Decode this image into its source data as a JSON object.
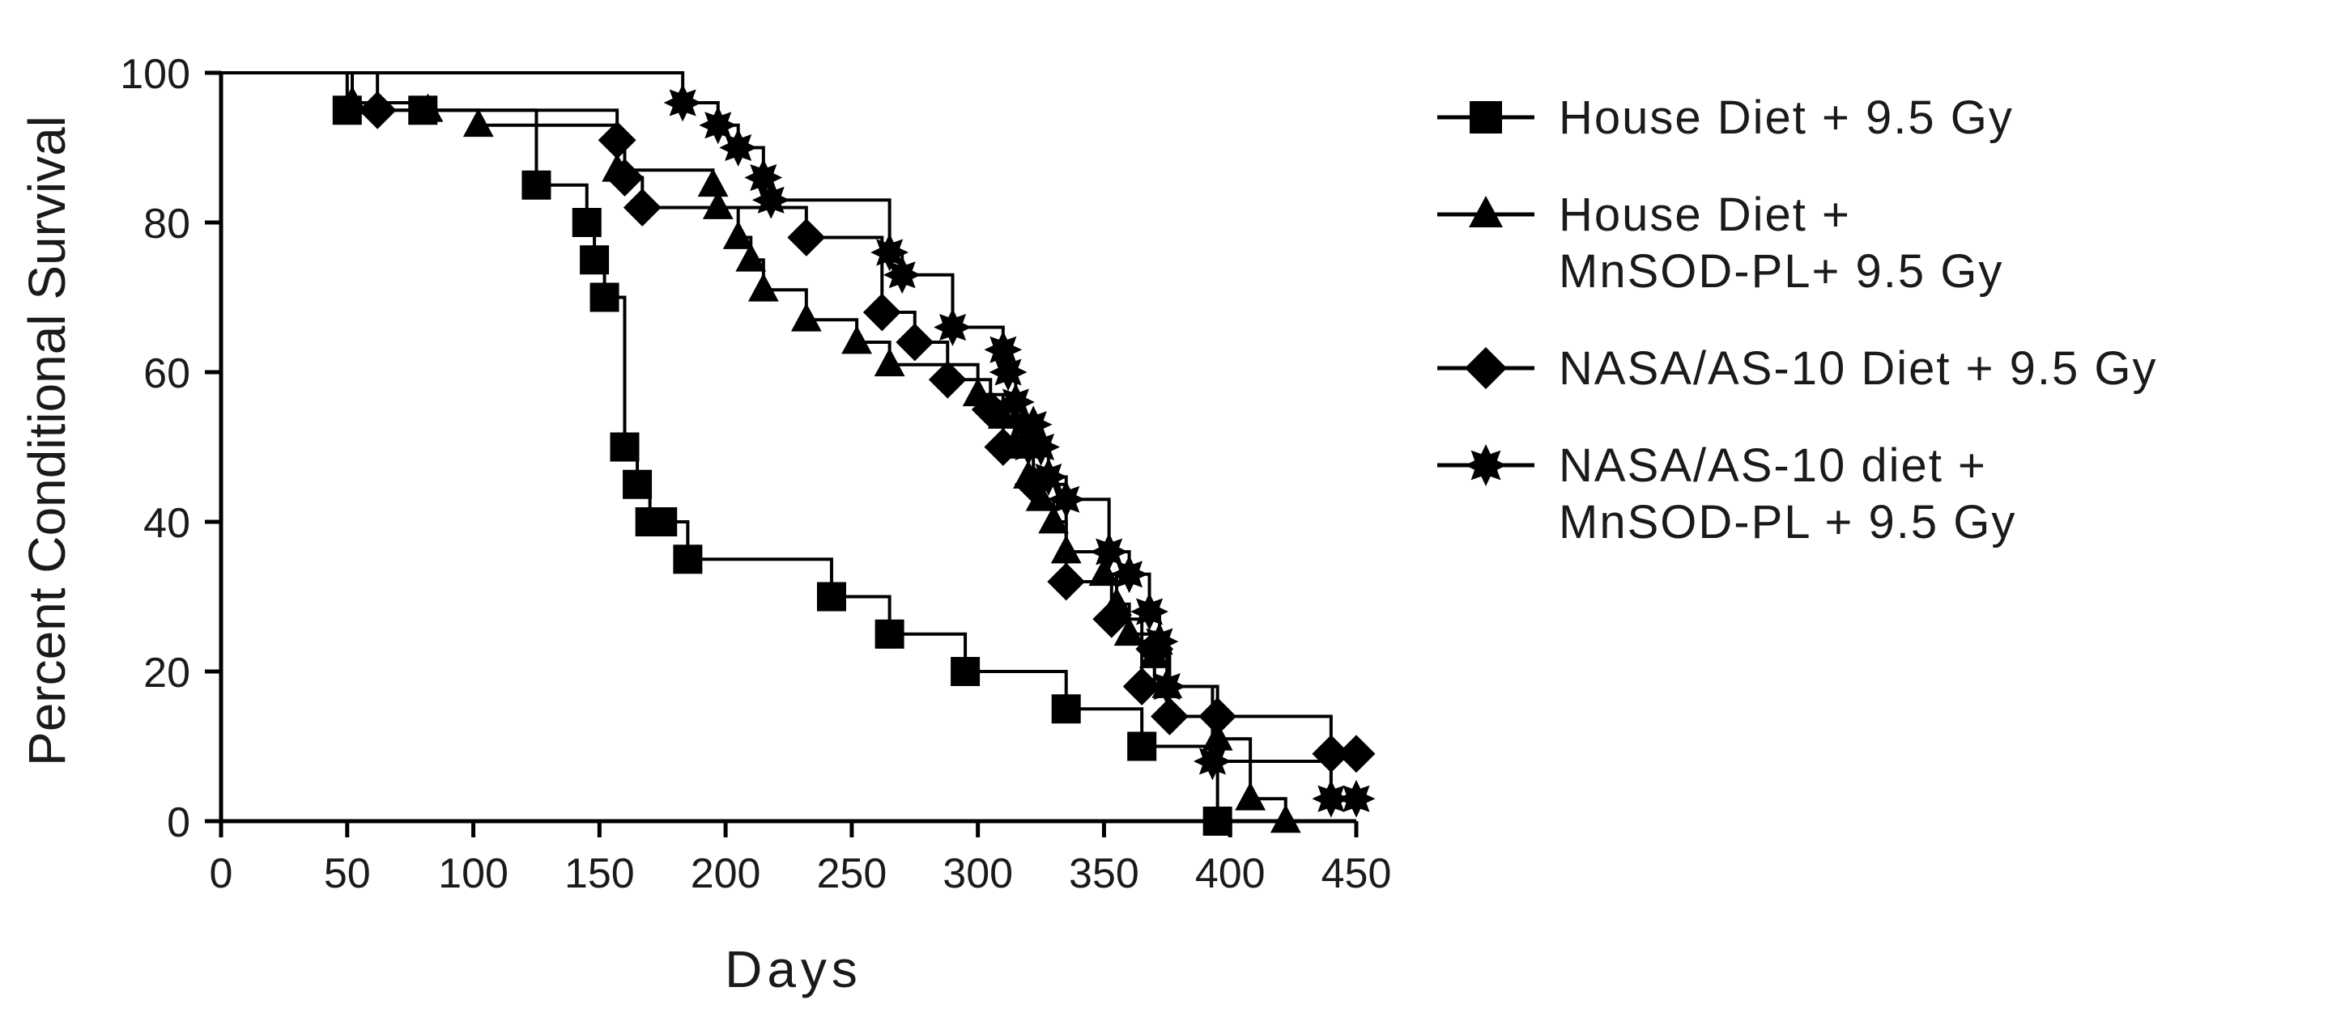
{
  "chart_data": {
    "type": "line",
    "title": "",
    "xlabel": "Days",
    "ylabel": "Percent Conditional  Survival",
    "xlim": [
      0,
      450
    ],
    "ylim": [
      0,
      100
    ],
    "xticks": [
      0,
      50,
      100,
      150,
      200,
      250,
      300,
      350,
      400,
      450
    ],
    "yticks": [
      0,
      20,
      40,
      60,
      80,
      100
    ],
    "grid": false,
    "step_plot": true,
    "legend_placement": "right",
    "colors": {
      "line": "#000000",
      "text": "#1a1a1a",
      "background": "#ffffff"
    },
    "legend": [
      {
        "marker": "square",
        "lines": [
          "House Diet + 9.5 Gy"
        ]
      },
      {
        "marker": "triangle",
        "lines": [
          "House Diet +",
          "MnSOD-PL+ 9.5 Gy"
        ]
      },
      {
        "marker": "diamond",
        "lines": [
          "NASA/AS-10 Diet + 9.5 Gy"
        ]
      },
      {
        "marker": "star",
        "lines": [
          "NASA/AS-10 diet +",
          "MnSOD-PL + 9.5 Gy"
        ]
      }
    ],
    "series": [
      {
        "marker": "square",
        "x": [
          0,
          50,
          80,
          125,
          145,
          148,
          152,
          160,
          165,
          170,
          175,
          185,
          242,
          265,
          295,
          335,
          365,
          395
        ],
        "y": [
          100,
          95,
          95,
          85,
          80,
          75,
          70,
          50,
          45,
          40,
          40,
          35,
          30,
          25,
          20,
          15,
          10,
          0
        ]
      },
      {
        "marker": "triangle",
        "x": [
          0,
          52,
          82,
          102,
          157,
          195,
          197,
          205,
          210,
          215,
          232,
          252,
          265,
          300,
          310,
          315,
          320,
          325,
          330,
          335,
          350,
          355,
          360,
          370,
          375,
          395,
          408,
          422
        ],
        "y": [
          100,
          96,
          95,
          93,
          87,
          85,
          82,
          78,
          75,
          71,
          67,
          64,
          61,
          57,
          54,
          50,
          46,
          43,
          40,
          36,
          33,
          29,
          25,
          22,
          18,
          11,
          3,
          0
        ]
      },
      {
        "marker": "diamond",
        "x": [
          0,
          62,
          157,
          160,
          167,
          232,
          262,
          275,
          288,
          305,
          310,
          322,
          335,
          353,
          365,
          370,
          376,
          395,
          440,
          450
        ],
        "y": [
          100,
          95,
          91,
          86,
          82,
          78,
          68,
          64,
          59,
          55,
          50,
          45,
          32,
          27,
          18,
          23,
          14,
          14,
          9,
          9
        ]
      },
      {
        "marker": "star",
        "x": [
          0,
          183,
          197,
          205,
          215,
          218,
          265,
          270,
          290,
          310,
          312,
          315,
          318,
          320,
          322,
          325,
          328,
          335,
          352,
          360,
          368,
          372,
          375,
          393,
          440,
          450
        ],
        "y": [
          100,
          96,
          93,
          90,
          86,
          83,
          76,
          73,
          66,
          63,
          60,
          56,
          53,
          50,
          53,
          50,
          46,
          43,
          36,
          33,
          28,
          24,
          18,
          8,
          3,
          3
        ]
      }
    ]
  }
}
